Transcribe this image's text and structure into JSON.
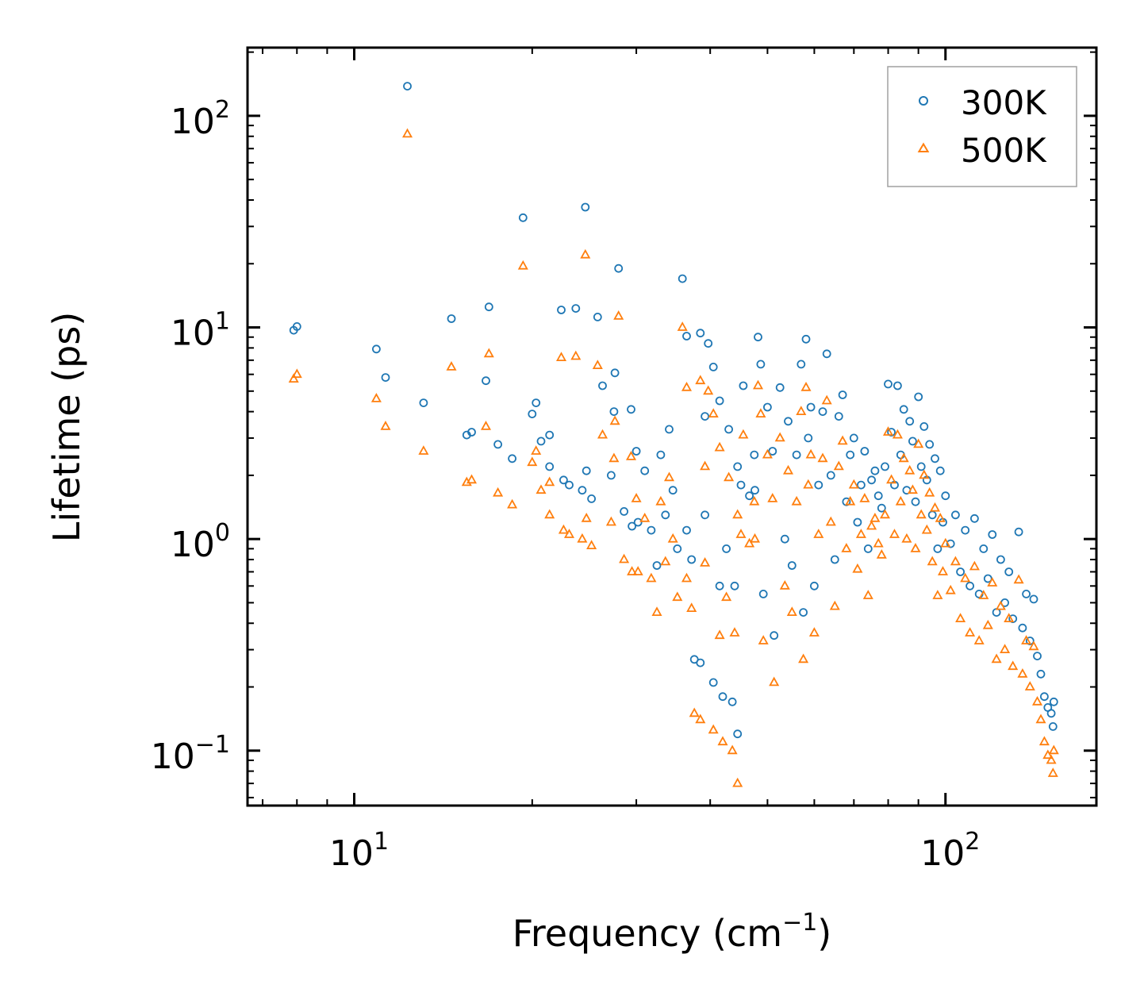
{
  "chart_data": {
    "type": "scatter",
    "xscale": "log",
    "yscale": "log",
    "xlim": [
      6.6,
      180
    ],
    "ylim": [
      0.055,
      210
    ],
    "xlabel": "Frequency (cm",
    "xlabel_sup": "−1",
    "xlabel_end": ")",
    "ylabel": "Lifetime (ps)",
    "legend_position": "top-right",
    "xticks": [
      {
        "value": 10,
        "base": "10",
        "exp": "1"
      },
      {
        "value": 100,
        "base": "10",
        "exp": "2"
      }
    ],
    "yticks": [
      {
        "value": 0.1,
        "base": "10",
        "exp": "−1"
      },
      {
        "value": 1,
        "base": "10",
        "exp": "0"
      },
      {
        "value": 10,
        "base": "10",
        "exp": "1"
      },
      {
        "value": 100,
        "base": "10",
        "exp": "2"
      }
    ],
    "series": [
      {
        "name": "300K",
        "marker": "circle",
        "color": "#1f77b4",
        "points": [
          [
            7.9,
            9.7
          ],
          [
            8.0,
            10.1
          ],
          [
            10.9,
            7.9
          ],
          [
            11.3,
            5.8
          ],
          [
            12.3,
            138
          ],
          [
            13.1,
            4.4
          ],
          [
            14.6,
            11.0
          ],
          [
            15.5,
            3.1
          ],
          [
            15.8,
            3.2
          ],
          [
            16.7,
            5.6
          ],
          [
            16.9,
            12.5
          ],
          [
            17.5,
            2.8
          ],
          [
            18.5,
            2.4
          ],
          [
            19.3,
            33
          ],
          [
            20.0,
            3.9
          ],
          [
            20.3,
            4.4
          ],
          [
            20.7,
            2.9
          ],
          [
            21.4,
            3.1
          ],
          [
            21.4,
            2.2
          ],
          [
            22.4,
            12.1
          ],
          [
            22.6,
            1.9
          ],
          [
            23.1,
            1.8
          ],
          [
            23.7,
            12.3
          ],
          [
            24.3,
            1.7
          ],
          [
            24.6,
            37
          ],
          [
            24.7,
            2.1
          ],
          [
            25.2,
            1.55
          ],
          [
            25.8,
            11.2
          ],
          [
            26.3,
            5.3
          ],
          [
            27.2,
            2.0
          ],
          [
            27.5,
            4.0
          ],
          [
            27.6,
            6.1
          ],
          [
            28.0,
            19
          ],
          [
            28.6,
            1.35
          ],
          [
            29.4,
            4.1
          ],
          [
            29.5,
            1.15
          ],
          [
            30.0,
            2.6
          ],
          [
            30.2,
            1.2
          ],
          [
            31.0,
            2.1
          ],
          [
            31.8,
            1.1
          ],
          [
            32.5,
            0.75
          ],
          [
            33.0,
            2.5
          ],
          [
            33.6,
            1.3
          ],
          [
            34.1,
            3.3
          ],
          [
            34.6,
            1.7
          ],
          [
            35.2,
            0.9
          ],
          [
            35.9,
            17
          ],
          [
            36.5,
            1.1
          ],
          [
            36.5,
            9.1
          ],
          [
            37.2,
            0.8
          ],
          [
            37.6,
            0.27
          ],
          [
            38.5,
            9.4
          ],
          [
            38.5,
            0.26
          ],
          [
            39.2,
            1.3
          ],
          [
            39.2,
            3.8
          ],
          [
            39.7,
            8.4
          ],
          [
            40.5,
            6.5
          ],
          [
            40.5,
            0.21
          ],
          [
            41.5,
            0.6
          ],
          [
            41.5,
            4.5
          ],
          [
            42.0,
            0.18
          ],
          [
            42.6,
            0.9
          ],
          [
            43.0,
            3.3
          ],
          [
            43.6,
            0.17
          ],
          [
            44.0,
            0.6
          ],
          [
            44.5,
            2.2
          ],
          [
            44.5,
            0.12
          ],
          [
            45.1,
            1.8
          ],
          [
            45.5,
            5.3
          ],
          [
            46.6,
            1.6
          ],
          [
            47.5,
            2.5
          ],
          [
            47.6,
            1.7
          ],
          [
            48.2,
            9.0
          ],
          [
            48.7,
            6.7
          ],
          [
            49.2,
            0.55
          ],
          [
            50.0,
            4.2
          ],
          [
            51.0,
            2.6
          ],
          [
            51.3,
            0.35
          ],
          [
            52.5,
            5.2
          ],
          [
            53.5,
            1.0
          ],
          [
            54.2,
            3.6
          ],
          [
            55.0,
            0.75
          ],
          [
            56.0,
            2.5
          ],
          [
            57.0,
            6.7
          ],
          [
            57.5,
            0.45
          ],
          [
            58.1,
            8.8
          ],
          [
            58.6,
            3.0
          ],
          [
            59.2,
            4.2
          ],
          [
            60.0,
            0.6
          ],
          [
            61.0,
            1.8
          ],
          [
            62.0,
            4.0
          ],
          [
            63.0,
            7.5
          ],
          [
            64.0,
            2.0
          ],
          [
            65.0,
            0.8
          ],
          [
            66.0,
            3.8
          ],
          [
            67.0,
            4.8
          ],
          [
            68.0,
            1.5
          ],
          [
            69.0,
            2.5
          ],
          [
            70.0,
            3.0
          ],
          [
            71.0,
            1.2
          ],
          [
            72.0,
            1.8
          ],
          [
            73.0,
            2.6
          ],
          [
            74.0,
            0.9
          ],
          [
            75.0,
            1.9
          ],
          [
            76.0,
            2.1
          ],
          [
            77.0,
            1.6
          ],
          [
            78.0,
            1.4
          ],
          [
            79.0,
            2.2
          ],
          [
            80.0,
            5.4
          ],
          [
            81.0,
            3.2
          ],
          [
            82.0,
            1.8
          ],
          [
            83.0,
            5.3
          ],
          [
            84.0,
            2.5
          ],
          [
            85.0,
            4.1
          ],
          [
            86.0,
            1.7
          ],
          [
            87.0,
            3.6
          ],
          [
            88.0,
            2.9
          ],
          [
            89.0,
            1.5
          ],
          [
            90.0,
            4.7
          ],
          [
            91.0,
            2.2
          ],
          [
            92.0,
            3.4
          ],
          [
            93.0,
            1.9
          ],
          [
            94.0,
            2.8
          ],
          [
            95.0,
            1.3
          ],
          [
            96.0,
            2.4
          ],
          [
            97.0,
            0.9
          ],
          [
            98.0,
            2.1
          ],
          [
            99.0,
            1.2
          ],
          [
            100.0,
            1.6
          ],
          [
            102.0,
            0.95
          ],
          [
            104.0,
            1.3
          ],
          [
            106.0,
            0.7
          ],
          [
            108.0,
            1.1
          ],
          [
            110.0,
            0.6
          ],
          [
            112.0,
            1.25
          ],
          [
            114.0,
            0.55
          ],
          [
            116.0,
            0.9
          ],
          [
            118.0,
            0.65
          ],
          [
            120.0,
            1.05
          ],
          [
            122.0,
            0.45
          ],
          [
            124.0,
            0.8
          ],
          [
            126.0,
            0.5
          ],
          [
            128.0,
            0.7
          ],
          [
            130.0,
            0.42
          ],
          [
            133.0,
            1.08
          ],
          [
            135.0,
            0.38
          ],
          [
            137.0,
            0.55
          ],
          [
            139.0,
            0.33
          ],
          [
            141.0,
            0.52
          ],
          [
            143.0,
            0.28
          ],
          [
            145.0,
            0.23
          ],
          [
            147.0,
            0.18
          ],
          [
            149.0,
            0.16
          ],
          [
            151.0,
            0.15
          ],
          [
            152.0,
            0.13
          ],
          [
            152.5,
            0.17
          ]
        ]
      },
      {
        "name": "500K",
        "marker": "triangle",
        "color": "#ff7f0e",
        "points": [
          [
            7.9,
            5.7
          ],
          [
            8.0,
            6.0
          ],
          [
            10.9,
            4.6
          ],
          [
            11.3,
            3.4
          ],
          [
            12.3,
            82
          ],
          [
            13.1,
            2.6
          ],
          [
            14.6,
            6.5
          ],
          [
            15.5,
            1.85
          ],
          [
            15.8,
            1.9
          ],
          [
            16.7,
            3.4
          ],
          [
            16.9,
            7.5
          ],
          [
            17.5,
            1.65
          ],
          [
            18.5,
            1.45
          ],
          [
            19.3,
            19.5
          ],
          [
            20.0,
            2.3
          ],
          [
            20.3,
            2.6
          ],
          [
            20.7,
            1.7
          ],
          [
            21.4,
            1.85
          ],
          [
            21.4,
            1.3
          ],
          [
            22.4,
            7.2
          ],
          [
            22.6,
            1.1
          ],
          [
            23.1,
            1.05
          ],
          [
            23.7,
            7.3
          ],
          [
            24.3,
            1.0
          ],
          [
            24.6,
            22
          ],
          [
            24.7,
            1.25
          ],
          [
            25.2,
            0.93
          ],
          [
            25.8,
            6.6
          ],
          [
            26.3,
            3.1
          ],
          [
            27.2,
            1.2
          ],
          [
            27.5,
            2.4
          ],
          [
            27.6,
            3.6
          ],
          [
            28.0,
            11.3
          ],
          [
            28.6,
            0.8
          ],
          [
            29.4,
            2.45
          ],
          [
            29.5,
            0.7
          ],
          [
            30.0,
            1.55
          ],
          [
            30.2,
            0.7
          ],
          [
            31.0,
            1.25
          ],
          [
            31.8,
            0.65
          ],
          [
            32.5,
            0.45
          ],
          [
            33.0,
            1.5
          ],
          [
            33.6,
            0.78
          ],
          [
            34.1,
            1.95
          ],
          [
            34.6,
            1.0
          ],
          [
            35.2,
            0.53
          ],
          [
            35.9,
            10
          ],
          [
            36.5,
            0.65
          ],
          [
            36.5,
            5.2
          ],
          [
            37.2,
            0.47
          ],
          [
            37.6,
            0.15
          ],
          [
            38.5,
            5.6
          ],
          [
            38.5,
            0.14
          ],
          [
            39.2,
            0.77
          ],
          [
            39.2,
            2.2
          ],
          [
            39.7,
            5.0
          ],
          [
            40.5,
            3.9
          ],
          [
            40.5,
            0.125
          ],
          [
            41.5,
            0.35
          ],
          [
            41.5,
            2.7
          ],
          [
            42.0,
            0.11
          ],
          [
            42.6,
            0.53
          ],
          [
            43.0,
            1.95
          ],
          [
            43.6,
            0.1
          ],
          [
            44.0,
            0.36
          ],
          [
            44.5,
            1.3
          ],
          [
            44.5,
            0.07
          ],
          [
            45.1,
            1.05
          ],
          [
            45.5,
            3.1
          ],
          [
            46.6,
            0.95
          ],
          [
            47.5,
            1.5
          ],
          [
            47.6,
            1.0
          ],
          [
            48.2,
            5.3
          ],
          [
            48.7,
            3.9
          ],
          [
            49.2,
            0.33
          ],
          [
            50.0,
            2.5
          ],
          [
            51.0,
            1.55
          ],
          [
            51.3,
            0.21
          ],
          [
            52.5,
            3.0
          ],
          [
            53.5,
            0.6
          ],
          [
            54.2,
            2.1
          ],
          [
            55.0,
            0.45
          ],
          [
            56.0,
            1.5
          ],
          [
            57.0,
            4.0
          ],
          [
            57.5,
            0.27
          ],
          [
            58.1,
            5.2
          ],
          [
            58.6,
            1.8
          ],
          [
            59.2,
            2.5
          ],
          [
            60.0,
            0.36
          ],
          [
            61.0,
            1.05
          ],
          [
            62.0,
            2.4
          ],
          [
            63.0,
            4.5
          ],
          [
            64.0,
            1.2
          ],
          [
            65.0,
            0.48
          ],
          [
            66.0,
            2.2
          ],
          [
            67.0,
            2.9
          ],
          [
            68.0,
            0.9
          ],
          [
            69.0,
            1.5
          ],
          [
            70.0,
            1.8
          ],
          [
            71.0,
            0.72
          ],
          [
            72.0,
            1.05
          ],
          [
            73.0,
            1.55
          ],
          [
            74.0,
            0.54
          ],
          [
            75.0,
            1.15
          ],
          [
            76.0,
            1.25
          ],
          [
            77.0,
            0.95
          ],
          [
            78.0,
            0.84
          ],
          [
            79.0,
            1.3
          ],
          [
            80.0,
            3.2
          ],
          [
            81.0,
            1.9
          ],
          [
            82.0,
            1.05
          ],
          [
            83.0,
            3.1
          ],
          [
            84.0,
            1.5
          ],
          [
            85.0,
            2.4
          ],
          [
            86.0,
            1.0
          ],
          [
            87.0,
            2.1
          ],
          [
            88.0,
            1.7
          ],
          [
            89.0,
            0.9
          ],
          [
            90.0,
            2.8
          ],
          [
            91.0,
            1.3
          ],
          [
            92.0,
            2.0
          ],
          [
            93.0,
            1.1
          ],
          [
            94.0,
            1.65
          ],
          [
            95.0,
            0.78
          ],
          [
            96.0,
            1.4
          ],
          [
            97.0,
            0.54
          ],
          [
            98.0,
            1.25
          ],
          [
            99.0,
            0.7
          ],
          [
            100.0,
            0.95
          ],
          [
            102.0,
            0.57
          ],
          [
            104.0,
            0.78
          ],
          [
            106.0,
            0.42
          ],
          [
            108.0,
            0.65
          ],
          [
            110.0,
            0.36
          ],
          [
            112.0,
            0.74
          ],
          [
            114.0,
            0.33
          ],
          [
            116.0,
            0.54
          ],
          [
            118.0,
            0.39
          ],
          [
            120.0,
            0.62
          ],
          [
            122.0,
            0.27
          ],
          [
            124.0,
            0.48
          ],
          [
            126.0,
            0.3
          ],
          [
            128.0,
            0.42
          ],
          [
            130.0,
            0.25
          ],
          [
            133.0,
            0.64
          ],
          [
            135.0,
            0.23
          ],
          [
            137.0,
            0.33
          ],
          [
            139.0,
            0.2
          ],
          [
            141.0,
            0.31
          ],
          [
            143.0,
            0.17
          ],
          [
            145.0,
            0.14
          ],
          [
            147.0,
            0.11
          ],
          [
            149.0,
            0.095
          ],
          [
            151.0,
            0.09
          ],
          [
            152.0,
            0.078
          ],
          [
            152.5,
            0.1
          ]
        ]
      }
    ]
  }
}
